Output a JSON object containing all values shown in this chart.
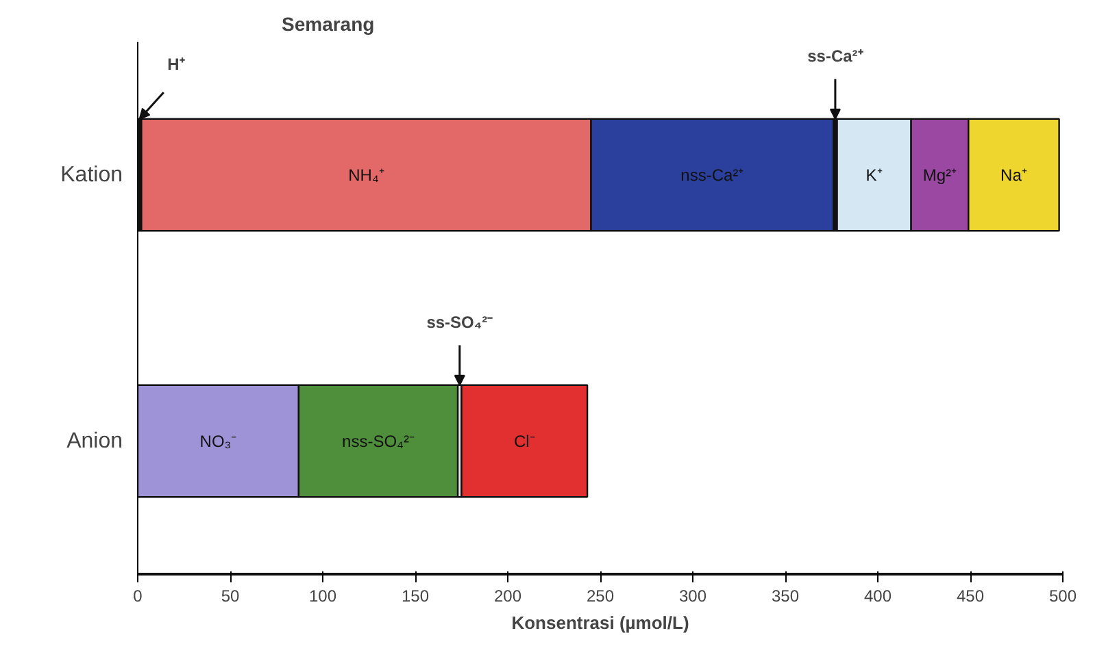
{
  "chart_data": {
    "type": "bar",
    "orientation": "horizontal",
    "stacked": true,
    "title": "Semarang",
    "xlabel": "Konsentrasi (µmol/L)",
    "categories": [
      "Kation",
      "Anion"
    ],
    "series": [
      {
        "name": "H⁺",
        "color": "#111111",
        "values": [
          2,
          null
        ]
      },
      {
        "name": "NH₄⁺",
        "color": "#e36868",
        "values": [
          243,
          null
        ]
      },
      {
        "name": "nss-Ca²⁺",
        "color": "#2b3f9c",
        "values": [
          131,
          null
        ]
      },
      {
        "name": "ss-Ca²⁺",
        "color": "#111111",
        "values": [
          2,
          null
        ]
      },
      {
        "name": "K⁺",
        "color": "#d5e7f3",
        "values": [
          40,
          null
        ]
      },
      {
        "name": "Mg²⁺",
        "color": "#9a48a2",
        "values": [
          31,
          null
        ]
      },
      {
        "name": "Na⁺",
        "color": "#eed62e",
        "values": [
          49,
          null
        ]
      },
      {
        "name": "NO₃⁻",
        "color": "#9f93d8",
        "values": [
          null,
          87
        ]
      },
      {
        "name": "nss-SO₄²⁻",
        "color": "#4f8e3b",
        "values": [
          null,
          86
        ]
      },
      {
        "name": "ss-SO₄²⁻",
        "color": "#e6e6e6",
        "values": [
          null,
          2
        ]
      },
      {
        "name": "Cl⁻",
        "color": "#e23030",
        "values": [
          null,
          68
        ]
      }
    ],
    "xlim": [
      0,
      500
    ],
    "xticks": [
      0,
      50,
      100,
      150,
      200,
      250,
      300,
      350,
      400,
      450,
      500
    ],
    "grid": false
  }
}
